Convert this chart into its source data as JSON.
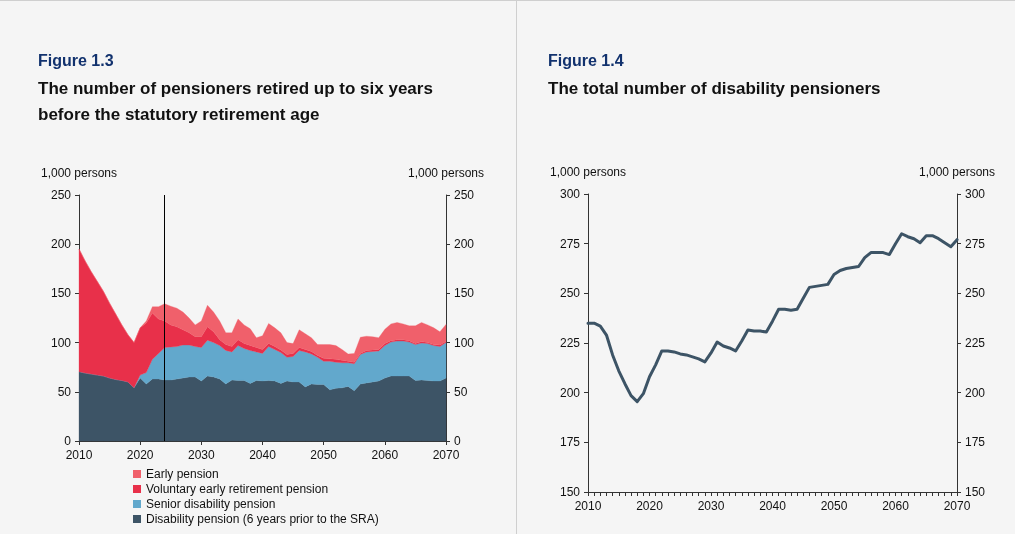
{
  "chart_data": [
    {
      "type": "area",
      "stacked": true,
      "title": "Figure 1.3",
      "subtitle": "The number of pensioners retired up to six years before the statutory retirement age",
      "ylabel": "1,000 persons",
      "y2label": "1,000 persons",
      "x": [
        2010,
        2011,
        2012,
        2013,
        2014,
        2015,
        2016,
        2017,
        2018,
        2019,
        2020,
        2021,
        2022,
        2023,
        2024,
        2025,
        2026,
        2027,
        2028,
        2029,
        2030,
        2031,
        2032,
        2033,
        2034,
        2035,
        2036,
        2037,
        2038,
        2039,
        2040,
        2041,
        2042,
        2043,
        2044,
        2045,
        2046,
        2047,
        2048,
        2049,
        2050,
        2051,
        2052,
        2053,
        2054,
        2055,
        2056,
        2057,
        2058,
        2059,
        2060,
        2061,
        2062,
        2063,
        2064,
        2065,
        2066,
        2067,
        2068,
        2069,
        2070
      ],
      "series": [
        {
          "name": "Disability pension (6 years prior to the SRA)",
          "color": "#3d5466",
          "values": [
            70.5,
            69,
            68,
            67,
            66,
            64,
            62.5,
            61.5,
            60,
            54,
            64,
            58,
            63,
            63,
            62,
            62,
            63,
            64,
            65,
            65,
            61,
            66,
            65,
            63,
            58,
            62,
            61.5,
            61.5,
            58.5,
            61.5,
            61,
            61.5,
            61,
            58.5,
            61,
            60,
            60,
            55,
            58,
            57.5,
            57.5,
            52,
            53.5,
            54,
            55.5,
            51,
            58,
            59,
            60,
            61,
            64,
            66,
            66,
            66,
            66,
            61.5,
            62,
            61.5,
            61,
            61,
            64
          ]
        },
        {
          "name": "Senior disability pension",
          "color": "#62a8cc",
          "values": [
            0,
            0,
            0,
            0,
            0,
            0,
            0,
            0,
            0,
            0,
            3,
            11.5,
            20,
            26,
            33,
            33.5,
            33,
            33.5,
            32.5,
            31,
            34,
            36.5,
            35,
            34,
            34,
            28.5,
            35.5,
            32.5,
            33.5,
            29,
            28,
            34.5,
            32,
            31.5,
            24,
            26,
            32,
            35.5,
            30.5,
            27.5,
            23.5,
            29,
            26.5,
            25.5,
            24,
            27.5,
            30,
            31.5,
            31,
            30.5,
            33,
            34.5,
            35.5,
            35.5,
            34.5,
            36.5,
            37.5,
            37.5,
            36,
            35,
            36
          ]
        },
        {
          "name": "Voluntary early retirement pension",
          "color": "#e8304a",
          "values": [
            124.5,
            114,
            104,
            95,
            86,
            76,
            66.5,
            56.5,
            48,
            46,
            48,
            50.5,
            47,
            35,
            27,
            22.5,
            20,
            15.5,
            12.5,
            10,
            11,
            13.5,
            11,
            6,
            6,
            5.5,
            6,
            5,
            5,
            4.5,
            4,
            3,
            3,
            2.5,
            3,
            3,
            3,
            2.5,
            2.5,
            2,
            3,
            2.5,
            3,
            2.5,
            1.5,
            1.5,
            1,
            1.5,
            1.5,
            1.5,
            2,
            1.5,
            1.5,
            1.5,
            1.5,
            1,
            1.5,
            1,
            1,
            1.5,
            1
          ]
        },
        {
          "name": "Early pension",
          "color": "#f0606b",
          "values": [
            0,
            0,
            0,
            0,
            0,
            0,
            0,
            0,
            0,
            0,
            0,
            2,
            6.5,
            12.5,
            17.5,
            19,
            19,
            18,
            15,
            12,
            16,
            22,
            20,
            19,
            12,
            14,
            21,
            19,
            17,
            10,
            14,
            20.5,
            19,
            17.5,
            12,
            10,
            18,
            16,
            14,
            11,
            14,
            14.5,
            14,
            11,
            7.5,
            9,
            16.5,
            14.5,
            13.5,
            12,
            14.5,
            17,
            17.5,
            16,
            15,
            18,
            19.5,
            18,
            17,
            13.5,
            17.5
          ]
        }
      ],
      "xlim": [
        2010,
        2070
      ],
      "xticks": [
        2010,
        2020,
        2030,
        2040,
        2050,
        2060,
        2070
      ],
      "ylim": [
        0,
        250
      ],
      "yticks": [
        0,
        50,
        100,
        150,
        200,
        250
      ],
      "y2lim": [
        0,
        250
      ],
      "y2ticks": [
        0,
        50,
        100,
        150,
        200,
        250
      ],
      "ref_lines": [
        {
          "axis": "x",
          "value": 2024,
          "color": "#000000"
        }
      ],
      "legend": "bottom",
      "grid": false
    },
    {
      "type": "line",
      "title": "Figure 1.4",
      "subtitle": "The total number of disability pensioners",
      "ylabel": "1,000 persons",
      "y2label": "1,000 persons",
      "x": [
        2010,
        2011,
        2012,
        2013,
        2014,
        2015,
        2016,
        2017,
        2018,
        2019,
        2020,
        2021,
        2022,
        2023,
        2024,
        2025,
        2026,
        2027,
        2028,
        2029,
        2030,
        2031,
        2032,
        2033,
        2034,
        2035,
        2036,
        2037,
        2038,
        2039,
        2040,
        2041,
        2042,
        2043,
        2044,
        2045,
        2046,
        2047,
        2048,
        2049,
        2050,
        2051,
        2052,
        2053,
        2054,
        2055,
        2056,
        2057,
        2058,
        2059,
        2060,
        2061,
        2062,
        2063,
        2064,
        2065,
        2066,
        2067,
        2068,
        2069,
        2070
      ],
      "series": [
        {
          "color": "#3d5466",
          "values": [
            235,
            235,
            233.5,
            229,
            219,
            211,
            204.5,
            198.5,
            195.5,
            199.5,
            208,
            214,
            221,
            221,
            220.5,
            219.5,
            219,
            218,
            217,
            215.5,
            220,
            225.5,
            223.5,
            222.5,
            221,
            226,
            231.5,
            231,
            231,
            230.5,
            236,
            242,
            242,
            241.5,
            242,
            247.5,
            253,
            253.5,
            254,
            254.5,
            259.5,
            261.5,
            262.5,
            263,
            263.5,
            268,
            270.5,
            270.5,
            270.5,
            269.5,
            275,
            280,
            278.5,
            277.5,
            275.5,
            279,
            279,
            277.5,
            275.5,
            273.5,
            277
          ]
        }
      ],
      "xlim": [
        2010,
        2070
      ],
      "xticks": [
        2010,
        {
          "value": 2011,
          "label": null
        },
        {
          "value": 2012,
          "label": null
        },
        {
          "value": 2013,
          "label": null
        },
        {
          "value": 2014,
          "label": null
        },
        {
          "value": 2015,
          "label": null
        },
        {
          "value": 2016,
          "label": null
        },
        {
          "value": 2017,
          "label": null
        },
        {
          "value": 2018,
          "label": null
        },
        {
          "value": 2019,
          "label": null
        },
        2020,
        {
          "value": 2021,
          "label": null
        },
        {
          "value": 2022,
          "label": null
        },
        {
          "value": 2023,
          "label": null
        },
        {
          "value": 2024,
          "label": null
        },
        {
          "value": 2025,
          "label": null
        },
        {
          "value": 2026,
          "label": null
        },
        {
          "value": 2027,
          "label": null
        },
        {
          "value": 2028,
          "label": null
        },
        {
          "value": 2029,
          "label": null
        },
        2030,
        {
          "value": 2031,
          "label": null
        },
        {
          "value": 2032,
          "label": null
        },
        {
          "value": 2033,
          "label": null
        },
        {
          "value": 2034,
          "label": null
        },
        {
          "value": 2035,
          "label": null
        },
        {
          "value": 2036,
          "label": null
        },
        {
          "value": 2037,
          "label": null
        },
        {
          "value": 2038,
          "label": null
        },
        {
          "value": 2039,
          "label": null
        },
        2040,
        {
          "value": 2041,
          "label": null
        },
        {
          "value": 2042,
          "label": null
        },
        {
          "value": 2043,
          "label": null
        },
        {
          "value": 2044,
          "label": null
        },
        {
          "value": 2045,
          "label": null
        },
        {
          "value": 2046,
          "label": null
        },
        {
          "value": 2047,
          "label": null
        },
        {
          "value": 2048,
          "label": null
        },
        {
          "value": 2049,
          "label": null
        },
        2050,
        {
          "value": 2051,
          "label": null
        },
        {
          "value": 2052,
          "label": null
        },
        {
          "value": 2053,
          "label": null
        },
        {
          "value": 2054,
          "label": null
        },
        {
          "value": 2055,
          "label": null
        },
        {
          "value": 2056,
          "label": null
        },
        {
          "value": 2057,
          "label": null
        },
        {
          "value": 2058,
          "label": null
        },
        {
          "value": 2059,
          "label": null
        },
        2060,
        {
          "value": 2061,
          "label": null
        },
        {
          "value": 2062,
          "label": null
        },
        {
          "value": 2063,
          "label": null
        },
        {
          "value": 2064,
          "label": null
        },
        {
          "value": 2065,
          "label": null
        },
        {
          "value": 2066,
          "label": null
        },
        {
          "value": 2067,
          "label": null
        },
        {
          "value": 2068,
          "label": null
        },
        {
          "value": 2069,
          "label": null
        },
        2070
      ],
      "ylim": [
        150,
        300
      ],
      "yticks": [
        150,
        175,
        200,
        225,
        250,
        275,
        300
      ],
      "y2lim": [
        150,
        300
      ],
      "y2ticks": [
        150,
        175,
        200,
        225,
        250,
        275,
        300
      ],
      "marker": "none",
      "line_style": "solid",
      "legend": false,
      "grid": false
    }
  ]
}
